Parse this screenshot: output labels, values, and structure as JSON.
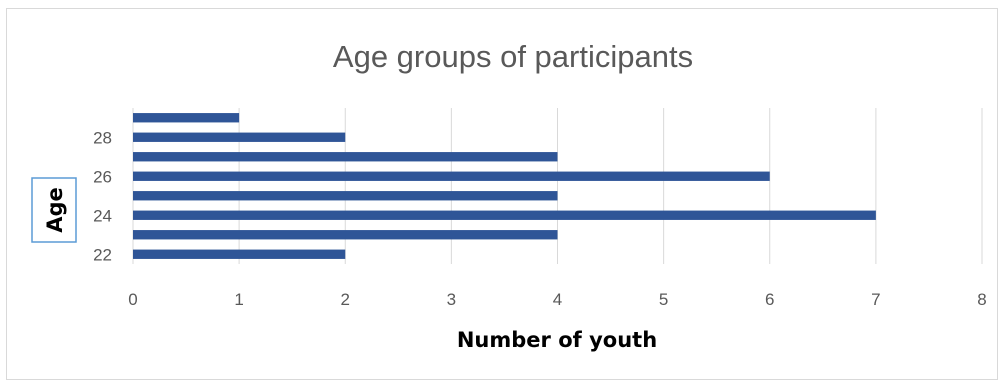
{
  "chart_data": {
    "type": "bar",
    "orientation": "horizontal",
    "title": "Age groups of participants",
    "xlabel": "Number of youth",
    "ylabel": "Age",
    "categories": [
      "22",
      "23",
      "24",
      "25",
      "26",
      "27",
      "28",
      "29"
    ],
    "y_tick_labels": [
      "22",
      "24",
      "26",
      "28"
    ],
    "values": [
      2,
      4,
      7,
      4,
      6,
      4,
      2,
      1
    ],
    "xlim": [
      0,
      8
    ],
    "x_ticks": [
      "0",
      "1",
      "2",
      "3",
      "4",
      "5",
      "6",
      "7",
      "8"
    ],
    "grid": "vertical",
    "legend": "none",
    "bar_color": "#2f5597",
    "grid_color": "#d9d9d9"
  }
}
